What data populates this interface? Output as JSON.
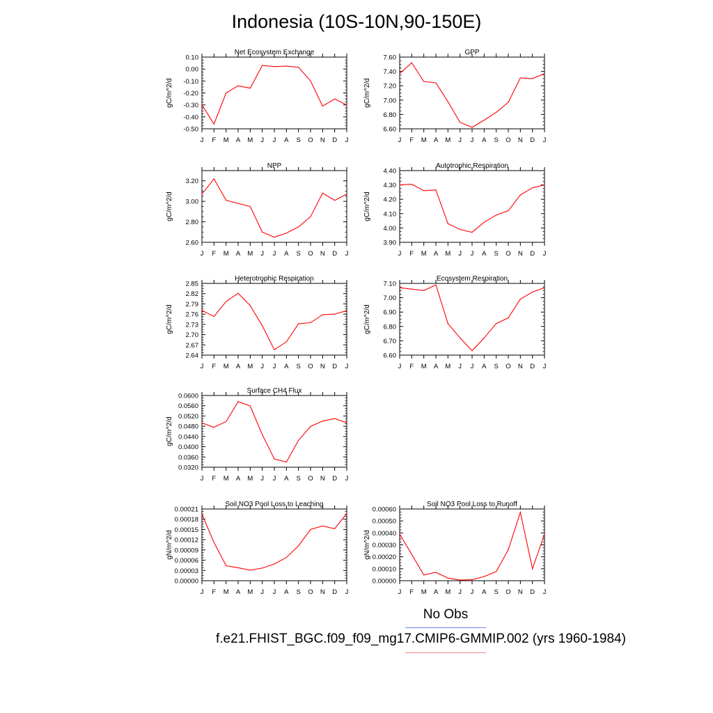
{
  "title": "Indonesia (10S-10N,90-150E)",
  "legend": {
    "obs_label": "No Obs",
    "case_label": "f.e21.FHIST_BGC.f09_f09_mg17.CMIP6-GMMIP.002 (yrs 1960-1984)",
    "colors": {
      "obs": "#6f7fe8",
      "case": "#ff0000"
    }
  },
  "chart_data": [
    {
      "type": "line",
      "title": "Net Ecosystem Exchange",
      "ylabel": "gC/m^2/d",
      "categories": [
        "J",
        "F",
        "M",
        "A",
        "M",
        "J",
        "J",
        "A",
        "S",
        "O",
        "N",
        "D",
        "J"
      ],
      "ylim": [
        -0.5,
        0.1
      ],
      "yticks": [
        "0.10",
        "0.00",
        "-0.10",
        "-0.20",
        "-0.30",
        "-0.40",
        "-0.50"
      ],
      "ytick_values": [
        0.1,
        0.0,
        -0.1,
        -0.2,
        -0.3,
        -0.4,
        -0.5
      ],
      "values": [
        -0.3,
        -0.46,
        -0.2,
        -0.14,
        -0.16,
        0.03,
        0.02,
        0.025,
        0.015,
        -0.1,
        -0.31,
        -0.25,
        -0.3
      ]
    },
    {
      "type": "line",
      "title": "GPP",
      "ylabel": "gC/m^2/d",
      "categories": [
        "J",
        "F",
        "M",
        "A",
        "M",
        "J",
        "J",
        "A",
        "S",
        "O",
        "N",
        "D",
        "J"
      ],
      "ylim": [
        6.6,
        7.6
      ],
      "yticks": [
        "7.60",
        "7.40",
        "7.20",
        "7.00",
        "6.80",
        "6.60"
      ],
      "ytick_values": [
        7.6,
        7.4,
        7.2,
        7.0,
        6.8,
        6.6
      ],
      "values": [
        7.37,
        7.52,
        7.26,
        7.24,
        6.98,
        6.69,
        6.62,
        6.72,
        6.83,
        6.97,
        7.31,
        7.3,
        7.37
      ]
    },
    {
      "type": "line",
      "title": "NPP",
      "ylabel": "gC/m^2/d",
      "categories": [
        "J",
        "F",
        "M",
        "A",
        "M",
        "J",
        "J",
        "A",
        "S",
        "O",
        "N",
        "D",
        "J"
      ],
      "ylim": [
        2.6,
        3.3
      ],
      "yticks": [
        "3.20",
        "3.00",
        "2.80",
        "2.60"
      ],
      "ytick_values": [
        3.2,
        3.0,
        2.8,
        2.6
      ],
      "values": [
        3.07,
        3.22,
        3.01,
        2.98,
        2.95,
        2.7,
        2.65,
        2.69,
        2.75,
        2.85,
        3.08,
        3.01,
        3.07
      ]
    },
    {
      "type": "line",
      "title": "Autotrophic Respiration",
      "ylabel": "gC/m^2/d",
      "categories": [
        "J",
        "F",
        "M",
        "A",
        "M",
        "J",
        "J",
        "A",
        "S",
        "O",
        "N",
        "D",
        "J"
      ],
      "ylim": [
        3.9,
        4.4
      ],
      "yticks": [
        "4.40",
        "4.30",
        "4.20",
        "4.10",
        "4.00",
        "3.90"
      ],
      "ytick_values": [
        4.4,
        4.3,
        4.2,
        4.1,
        4.0,
        3.9
      ],
      "values": [
        4.3,
        4.305,
        4.26,
        4.265,
        4.03,
        3.99,
        3.97,
        4.04,
        4.09,
        4.12,
        4.23,
        4.28,
        4.3
      ]
    },
    {
      "type": "line",
      "title": "Heterotrophic Respiration",
      "ylabel": "gC/m^2/d",
      "categories": [
        "J",
        "F",
        "M",
        "A",
        "M",
        "J",
        "J",
        "A",
        "S",
        "O",
        "N",
        "D",
        "J"
      ],
      "ylim": [
        2.64,
        2.85
      ],
      "yticks": [
        "2.85",
        "2.82",
        "2.79",
        "2.76",
        "2.73",
        "2.70",
        "2.67",
        "2.64"
      ],
      "ytick_values": [
        2.85,
        2.82,
        2.79,
        2.76,
        2.73,
        2.7,
        2.67,
        2.64
      ],
      "values": [
        2.771,
        2.753,
        2.797,
        2.821,
        2.785,
        2.726,
        2.656,
        2.679,
        2.732,
        2.735,
        2.758,
        2.76,
        2.77
      ]
    },
    {
      "type": "line",
      "title": "Ecosystem Respiration",
      "ylabel": "gC/m^2/d",
      "categories": [
        "J",
        "F",
        "M",
        "A",
        "M",
        "J",
        "J",
        "A",
        "S",
        "O",
        "N",
        "D",
        "J"
      ],
      "ylim": [
        6.6,
        7.1
      ],
      "yticks": [
        "7.10",
        "7.00",
        "6.90",
        "6.80",
        "6.70",
        "6.60"
      ],
      "ytick_values": [
        7.1,
        7.0,
        6.9,
        6.8,
        6.7,
        6.6
      ],
      "values": [
        7.07,
        7.06,
        7.05,
        7.09,
        6.82,
        6.72,
        6.63,
        6.72,
        6.82,
        6.86,
        6.99,
        7.04,
        7.07
      ]
    },
    {
      "type": "line",
      "title": "Surface CH4 Flux",
      "ylabel": "gC/m^2/d",
      "categories": [
        "J",
        "F",
        "M",
        "A",
        "M",
        "J",
        "J",
        "A",
        "S",
        "O",
        "N",
        "D",
        "J"
      ],
      "ylim": [
        0.032,
        0.06
      ],
      "yticks": [
        "0.0600",
        "0.0560",
        "0.0520",
        "0.0480",
        "0.0440",
        "0.0400",
        "0.0360",
        "0.0320"
      ],
      "ytick_values": [
        0.06,
        0.056,
        0.052,
        0.048,
        0.044,
        0.04,
        0.036,
        0.032
      ],
      "values": [
        0.0493,
        0.0476,
        0.0498,
        0.0576,
        0.0559,
        0.0447,
        0.0352,
        0.034,
        0.0425,
        0.0479,
        0.05,
        0.051,
        0.0493
      ]
    },
    {
      "type": "line",
      "title": "Soil NO3 Pool Loss to Leaching",
      "ylabel": "gN/m^2/d",
      "categories": [
        "J",
        "F",
        "M",
        "A",
        "M",
        "J",
        "J",
        "A",
        "S",
        "O",
        "N",
        "D",
        "J"
      ],
      "ylim": [
        0,
        0.00021
      ],
      "yticks": [
        "0.00021",
        "0.00018",
        "0.00015",
        "0.00012",
        "0.00009",
        "0.00006",
        "0.00003",
        "0.00000"
      ],
      "ytick_values": [
        0.00021,
        0.00018,
        0.00015,
        0.00012,
        9e-05,
        6e-05,
        3e-05,
        0
      ],
      "values": [
        0.000195,
        0.000112,
        4.4e-05,
        3.8e-05,
        3.1e-05,
        3.7e-05,
        4.9e-05,
        6.8e-05,
        0.000102,
        0.00015,
        0.00016,
        0.000152,
        0.000197
      ]
    },
    {
      "type": "line",
      "title": "Soil NO3 Pool Loss to Runoff",
      "ylabel": "gN/m^2/d",
      "categories": [
        "J",
        "F",
        "M",
        "A",
        "M",
        "J",
        "J",
        "A",
        "S",
        "O",
        "N",
        "D",
        "J"
      ],
      "ylim": [
        0,
        0.0006
      ],
      "yticks": [
        "0.00060",
        "0.00050",
        "0.00040",
        "0.00030",
        "0.00020",
        "0.00010",
        "0.00000"
      ],
      "ytick_values": [
        0.0006,
        0.0005,
        0.0004,
        0.0003,
        0.0002,
        0.0001,
        0
      ],
      "values": [
        0.00039,
        0.00022,
        4.8e-05,
        7e-05,
        2.2e-05,
        5e-06,
        8e-06,
        3.5e-05,
        7.7e-05,
        0.00026,
        0.000572,
        0.0001,
        0.00039
      ]
    }
  ]
}
